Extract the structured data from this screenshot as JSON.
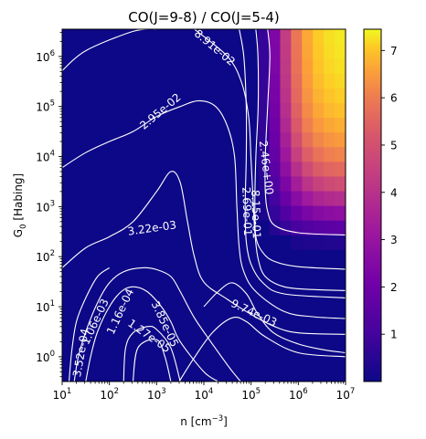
{
  "chart_data": {
    "type": "heatmap",
    "title": "CO(J=9-8) / CO(J=5-4)",
    "xlabel_main": "n [cm",
    "xlabel_sup": "−3",
    "xlabel_close": "]",
    "ylabel_main": "G",
    "ylabel_sub": "0",
    "ylabel_rest": " [Habing]",
    "x_scale": "log",
    "y_scale": "log",
    "xlim": [
      10,
      10000000
    ],
    "ylim": [
      0.32,
      3500000
    ],
    "x_ticks": [
      {
        "value": 10,
        "base": "10",
        "exp": "1"
      },
      {
        "value": 100,
        "base": "10",
        "exp": "2"
      },
      {
        "value": 1000,
        "base": "10",
        "exp": "3"
      },
      {
        "value": 10000,
        "base": "10",
        "exp": "4"
      },
      {
        "value": 100000,
        "base": "10",
        "exp": "5"
      },
      {
        "value": 1000000,
        "base": "10",
        "exp": "6"
      },
      {
        "value": 10000000,
        "base": "10",
        "exp": "7"
      }
    ],
    "y_ticks": [
      {
        "value": 1,
        "base": "10",
        "exp": "0"
      },
      {
        "value": 10,
        "base": "10",
        "exp": "1"
      },
      {
        "value": 100,
        "base": "10",
        "exp": "2"
      },
      {
        "value": 1000,
        "base": "10",
        "exp": "3"
      },
      {
        "value": 10000,
        "base": "10",
        "exp": "4"
      },
      {
        "value": 100000,
        "base": "10",
        "exp": "5"
      },
      {
        "value": 1000000,
        "base": "10",
        "exp": "6"
      }
    ],
    "colorbar": {
      "colormap": "plasma",
      "range": [
        0.0,
        7.45
      ],
      "ticks": [
        "1",
        "2",
        "3",
        "4",
        "5",
        "6",
        "7"
      ],
      "tick_values": [
        1,
        2,
        3,
        4,
        5,
        6,
        7
      ]
    },
    "contours": [
      {
        "level": "8.91e-02",
        "points": [
          [
            10,
            520000
          ],
          [
            31.6,
            1300000
          ],
          [
            316,
            3160000
          ],
          [
            1000,
            3500000
          ]
        ]
      },
      {
        "level": "8.91e-02",
        "points": [
          [
            6300,
            3500000
          ],
          [
            31600,
            1000000
          ],
          [
            63000,
            300000
          ],
          [
            89000,
            60000
          ],
          [
            100000,
            8000
          ],
          [
            110000,
            1500
          ],
          [
            120000,
            300
          ],
          [
            141000,
            90
          ],
          [
            200000,
            40
          ],
          [
            500000,
            25
          ],
          [
            2000000,
            22
          ],
          [
            10000000,
            21
          ]
        ]
      },
      {
        "level": "2.95e-02",
        "points": [
          [
            10,
            6000
          ],
          [
            31.6,
            12000
          ],
          [
            100,
            20000
          ],
          [
            316,
            31600
          ],
          [
            1000,
            63000
          ],
          [
            3160,
            100000
          ],
          [
            7900,
            130000
          ],
          [
            17800,
            100000
          ],
          [
            31600,
            40000
          ],
          [
            44700,
            10000
          ],
          [
            50000,
            1000
          ],
          [
            56000,
            150
          ],
          [
            70000,
            50
          ],
          [
            126000,
            20
          ],
          [
            500000,
            8
          ],
          [
            2000000,
            6.3
          ],
          [
            10000000,
            5.8
          ]
        ]
      },
      {
        "level": "2.46e+00",
        "points": [
          [
            224000,
            3500000
          ],
          [
            250000,
            1000000
          ],
          [
            224000,
            100000
          ],
          [
            200000,
            10000
          ],
          [
            200000,
            2000
          ],
          [
            224000,
            800
          ],
          [
            316000,
            420
          ],
          [
            1000000,
            300
          ],
          [
            10000000,
            270
          ]
        ]
      },
      {
        "level": "8.15e-01",
        "points": [
          [
            126000,
            3500000
          ],
          [
            140000,
            1000000
          ],
          [
            141000,
            100000
          ],
          [
            126000,
            10000
          ],
          [
            120000,
            1000
          ],
          [
            126000,
            250
          ],
          [
            178000,
            120
          ],
          [
            316000,
            80
          ],
          [
            1000000,
            63
          ],
          [
            10000000,
            56
          ]
        ]
      },
      {
        "level": "2.69e-01",
        "points": [
          [
            56000,
            3500000
          ],
          [
            70000,
            1000000
          ],
          [
            79000,
            100000
          ],
          [
            79000,
            10000
          ],
          [
            75000,
            1000
          ],
          [
            79000,
            200
          ],
          [
            100000,
            70
          ],
          [
            178000,
            30
          ],
          [
            500000,
            18
          ],
          [
            10000000,
            15
          ]
        ]
      },
      {
        "level": "3.22e-03",
        "points": [
          [
            10,
            60
          ],
          [
            31.6,
            150
          ],
          [
            100,
            250
          ],
          [
            316,
            500
          ],
          [
            1000,
            2000
          ],
          [
            2000,
            5000
          ],
          [
            3160,
            3000
          ],
          [
            4500,
            500
          ],
          [
            6300,
            100
          ],
          [
            10000,
            31
          ],
          [
            31600,
            14
          ],
          [
            100000,
            7
          ],
          [
            316000,
            4
          ],
          [
            1000000,
            3
          ],
          [
            10000000,
            2.8
          ]
        ]
      },
      {
        "level": "9.74e-03",
        "points": [
          [
            10000,
            10
          ],
          [
            20000,
            20
          ],
          [
            40000,
            30
          ],
          [
            80000,
            18
          ],
          [
            140000,
            7
          ],
          [
            300000,
            3
          ],
          [
            1000000,
            1.8
          ],
          [
            3160000,
            1.4
          ],
          [
            10000000,
            1.2
          ]
        ]
      },
      {
        "level": "1.16e-04",
        "points": [
          [
            31.6,
            0.32
          ],
          [
            40,
            1
          ],
          [
            56,
            3.16
          ],
          [
            100,
            10
          ],
          [
            178,
            20
          ],
          [
            316,
            25
          ],
          [
            630,
            20
          ],
          [
            1260,
            10
          ],
          [
            2000,
            5
          ],
          [
            3160,
            2
          ],
          [
            10000,
            0.5
          ],
          [
            20000,
            0.32
          ]
        ]
      },
      {
        "level": "1.06e-03",
        "points": [
          [
            18,
            0.32
          ],
          [
            22,
            1
          ],
          [
            31.6,
            3.16
          ],
          [
            56,
            12
          ],
          [
            100,
            30
          ],
          [
            200,
            50
          ],
          [
            500,
            60
          ],
          [
            1000,
            55
          ],
          [
            2000,
            40
          ],
          [
            3160,
            20
          ],
          [
            6300,
            6
          ],
          [
            14000,
            2
          ],
          [
            35000,
            0.6
          ],
          [
            60000,
            0.32
          ]
        ]
      },
      {
        "level": "3.52e-04",
        "points": [
          [
            14,
            0.32
          ],
          [
            16,
            1.3
          ],
          [
            20,
            5
          ],
          [
            31.6,
            15
          ],
          [
            56,
            40
          ],
          [
            100,
            60
          ]
        ]
      },
      {
        "level": "3.85e-05",
        "points": [
          [
            200,
            0.32
          ],
          [
            220,
            1.5
          ],
          [
            316,
            3
          ],
          [
            630,
            4
          ],
          [
            1000,
            3.5
          ],
          [
            2000,
            1.5
          ],
          [
            3160,
            0.32
          ]
        ]
      },
      {
        "level": "1.27e-05",
        "points": [
          [
            316,
            0.32
          ],
          [
            400,
            1.5
          ],
          [
            1000,
            2.2
          ],
          [
            1500,
            1
          ],
          [
            2000,
            0.32
          ]
        ]
      },
      {
        "level": "",
        "points": [
          [
            3000,
            0.32
          ],
          [
            6000,
            0.9
          ],
          [
            15000,
            3
          ],
          [
            40000,
            6
          ],
          [
            80000,
            5
          ],
          [
            200000,
            2.5
          ],
          [
            1000000,
            1.2
          ],
          [
            10000000,
            1
          ]
        ]
      }
    ],
    "contour_labels": [
      {
        "text": "8.91e-02",
        "x": 17000,
        "y": 1500000,
        "rotation": 40
      },
      {
        "text": "2.95e-02",
        "x": 1200,
        "y": 80000,
        "rotation": -40
      },
      {
        "text": "2.46e+00",
        "x": 210000,
        "y": 6000,
        "rotation": 83
      },
      {
        "text": "8.15e-01",
        "x": 127000,
        "y": 700,
        "rotation": 88
      },
      {
        "text": "2.69e-01",
        "x": 82000,
        "y": 800,
        "rotation": 88
      },
      {
        "text": "3.22e-03",
        "x": 800,
        "y": 370,
        "rotation": -8
      },
      {
        "text": "9.74e-03",
        "x": 115000,
        "y": 7.5,
        "rotation": 25
      },
      {
        "text": "1.16e-04",
        "x": 170,
        "y": 8,
        "rotation": -65
      },
      {
        "text": "1.06e-03",
        "x": 50,
        "y": 5,
        "rotation": -65
      },
      {
        "text": "3.52e-04",
        "x": 25,
        "y": 1.2,
        "rotation": -80
      },
      {
        "text": "3.85e-05",
        "x": 1500,
        "y": 4.5,
        "rotation": 65
      },
      {
        "text": "1.27e-05",
        "x": 700,
        "y": 2.6,
        "rotation": 35
      }
    ]
  }
}
